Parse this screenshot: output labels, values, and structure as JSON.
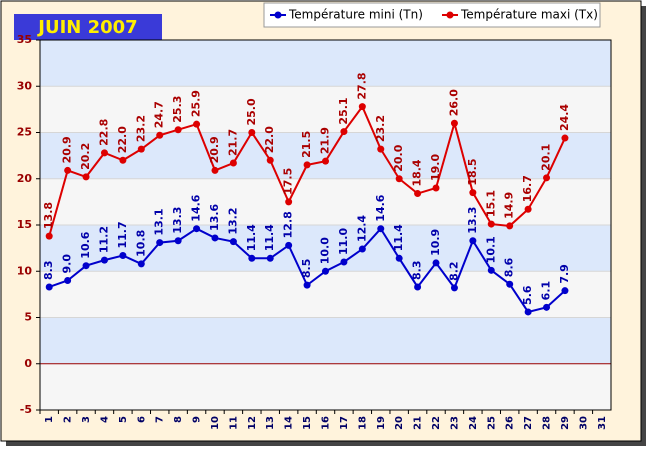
{
  "chart_data": {
    "type": "line",
    "title": "JUIN 2007",
    "categories": [
      "1",
      "2",
      "3",
      "4",
      "5",
      "6",
      "7",
      "8",
      "9",
      "10",
      "11",
      "12",
      "13",
      "14",
      "15",
      "16",
      "17",
      "18",
      "19",
      "20",
      "21",
      "22",
      "23",
      "24",
      "25",
      "26",
      "27",
      "28",
      "29",
      "30",
      "31"
    ],
    "series": [
      {
        "name": "Température mini (Tn)",
        "color": "#0000cc",
        "values": [
          8.3,
          9.0,
          10.6,
          11.2,
          11.7,
          10.8,
          13.1,
          13.3,
          14.6,
          13.6,
          13.2,
          11.4,
          11.4,
          12.8,
          8.5,
          10.0,
          11.0,
          12.4,
          14.6,
          11.4,
          8.3,
          10.9,
          8.2,
          13.3,
          10.1,
          8.6,
          5.6,
          6.1,
          7.9,
          null,
          null
        ],
        "value_labels": [
          "8.3",
          "9.0",
          "10.6",
          "11.2",
          "11.7",
          "10.8",
          "13.1",
          "13.3",
          "14.6",
          "13.6",
          "13.2",
          "11.4",
          "11.4",
          "12.8",
          "8.5",
          "10.0",
          "11.0",
          "12.4",
          "14.6",
          "11.4",
          "8.3",
          "10.9",
          "8.2",
          "13.3",
          "10.1",
          "8.6",
          "5.6",
          "6.1",
          "7.9",
          null,
          null
        ]
      },
      {
        "name": "Température maxi (Tx)",
        "color": "#dd0000",
        "values": [
          13.8,
          20.9,
          20.2,
          22.8,
          22.0,
          23.2,
          24.7,
          25.3,
          25.9,
          20.9,
          21.7,
          25.0,
          22.0,
          17.5,
          21.5,
          21.9,
          25.1,
          27.8,
          23.2,
          20.0,
          18.4,
          19.0,
          26.0,
          18.5,
          15.1,
          14.9,
          16.7,
          20.1,
          24.4,
          null,
          null
        ],
        "value_labels": [
          "13.8",
          "20.9",
          "20.2",
          "22.8",
          "22.0",
          "23.2",
          "24.7",
          "25.3",
          "25.9",
          "20.9",
          "21.7",
          "25.0",
          "22.0",
          "17.5",
          "21.5",
          "21.9",
          "25.1",
          "27.8",
          "23.2",
          "20.0",
          "18.4",
          "19.0",
          "26.0",
          "18.5",
          "15.1",
          "14.9",
          "16.7",
          "20.1",
          "24.4",
          null,
          null
        ]
      }
    ],
    "ylim": [
      -5,
      35
    ],
    "yticks": [
      -5,
      0,
      5,
      10,
      15,
      20,
      25,
      30,
      35
    ],
    "grid": true
  }
}
